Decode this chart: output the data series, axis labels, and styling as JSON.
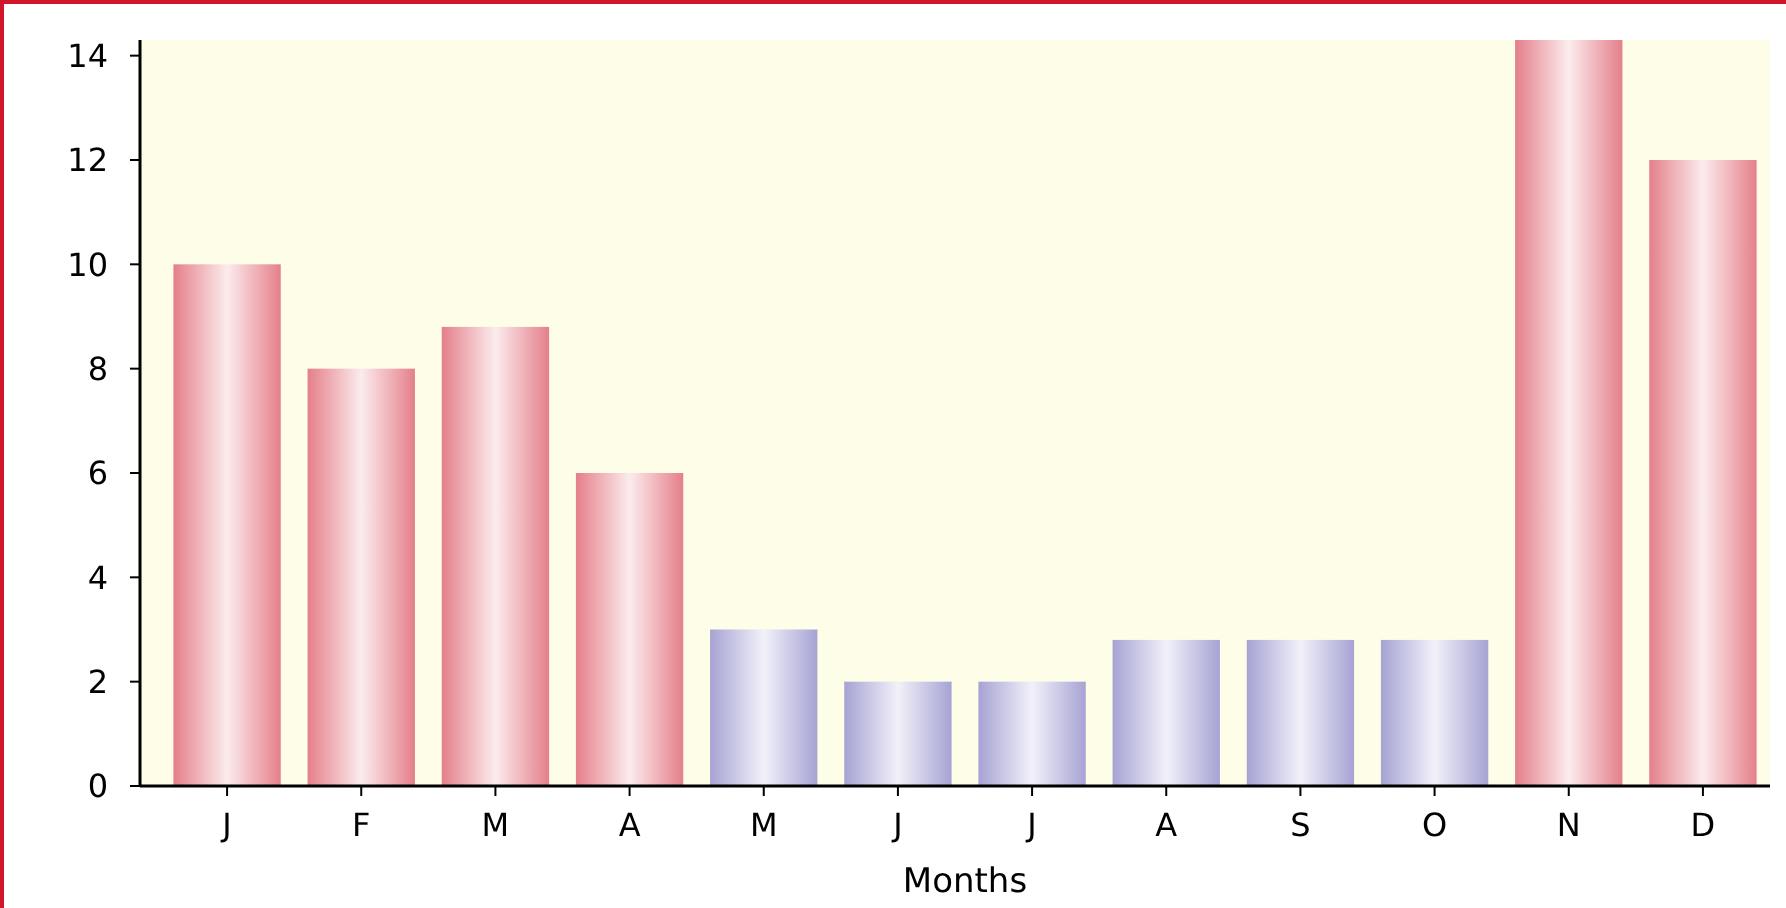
{
  "chart_data": {
    "type": "bar",
    "xlabel": "Months",
    "categories": [
      "J",
      "F",
      "M",
      "A",
      "M",
      "J",
      "J",
      "A",
      "S",
      "O",
      "N",
      "D"
    ],
    "values": [
      10,
      8,
      8.8,
      6,
      3,
      2,
      2,
      2.8,
      2.8,
      2.8,
      14.3,
      12
    ],
    "colors": [
      "#e57f8a",
      "#e57f8a",
      "#e57f8a",
      "#e57f8a",
      "#a6a3d4",
      "#a6a3d4",
      "#a6a3d4",
      "#a6a3d4",
      "#a6a3d4",
      "#a6a3d4",
      "#e57f8a",
      "#e57f8a"
    ],
    "ylim": [
      0,
      14.3
    ],
    "yticks": [
      0,
      2,
      4,
      6,
      8,
      10,
      12,
      14
    ],
    "grid": false
  }
}
